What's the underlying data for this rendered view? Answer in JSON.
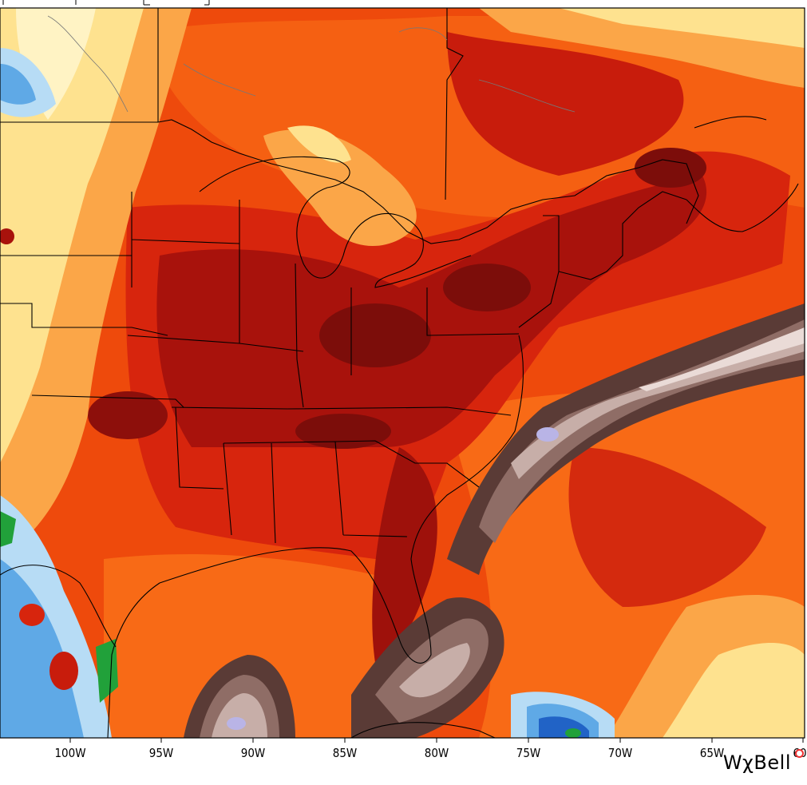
{
  "map": {
    "colors": {
      "ocean_base": "#ee4a0c",
      "warm_orange": "#f86a16",
      "red": "#d7250d",
      "dark_red": "#a8120c",
      "deep_red": "#7c0d0a",
      "light_orange": "#fba648",
      "pale_yellow": "#fee28f",
      "pale_cream": "#fff3c4",
      "light_blue": "#b7dcf5",
      "mid_blue": "#5fa9e6",
      "dark_blue": "#2163c6",
      "green": "#21a13a",
      "brown_dark": "#5a3b36",
      "brown_mid": "#8f6d66",
      "brown_light": "#c7aea8",
      "mauve_pale": "#eadbd7",
      "lavender": "#b9b4e6",
      "boundary": "#000000",
      "lake_outline": "#777777"
    },
    "longitude_labels": [
      "100W",
      "95W",
      "90W",
      "85W",
      "80W",
      "75W",
      "70W",
      "65W",
      "60"
    ],
    "brand": "WχBell"
  }
}
